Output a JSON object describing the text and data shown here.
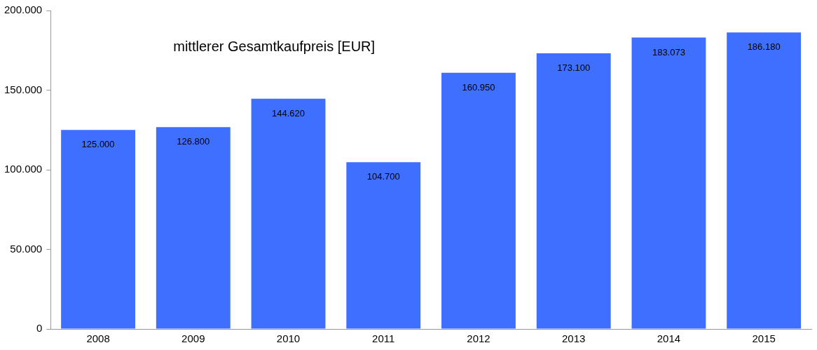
{
  "chart_data": {
    "type": "bar",
    "title": "mittlerer Gesamtkaufpreis [EUR]",
    "categories": [
      "2008",
      "2009",
      "2010",
      "2011",
      "2012",
      "2013",
      "2014",
      "2015"
    ],
    "values": [
      125000,
      126800,
      144620,
      104700,
      160950,
      173100,
      183073,
      186180
    ],
    "value_labels": [
      "125.000",
      "126.800",
      "144.620",
      "104.700",
      "160.950",
      "173.100",
      "183.073",
      "186.180"
    ],
    "color": "#3f6fff",
    "ylim": [
      0,
      200000
    ],
    "yticks": [
      {
        "value": 0,
        "label": "0"
      },
      {
        "value": 50000,
        "label": "50.000"
      },
      {
        "value": 100000,
        "label": "100.000"
      },
      {
        "value": 150000,
        "label": "150.000"
      },
      {
        "value": 200000,
        "label": "200.000"
      }
    ],
    "grid": false,
    "legend": false
  }
}
